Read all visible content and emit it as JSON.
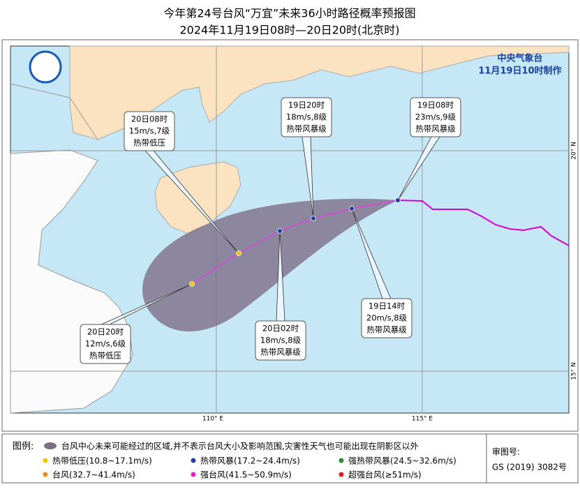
{
  "title": "今年第24号台风“万宜”未来36小时路径概率预报图",
  "subtitle": "2024年11月19日08时—20日20时(北京时)",
  "agency": "中央气象台",
  "issued": "11月19日10时制作",
  "callouts": [
    {
      "lines": [
        "19日08时",
        "23m/s,9级",
        "热带风暴级"
      ]
    },
    {
      "lines": [
        "19日14时",
        "20m/s,8级",
        "热带风暴级"
      ]
    },
    {
      "lines": [
        "19日20时",
        "18m/s,8级",
        "热带风暴级"
      ]
    },
    {
      "lines": [
        "20日02时",
        "18m/s,8级",
        "热带风暴级"
      ]
    },
    {
      "lines": [
        "20日08时",
        "15m/s,7级",
        "热带低压"
      ]
    },
    {
      "lines": [
        "20日20时",
        "12m/s,6级",
        "热带低压"
      ]
    }
  ],
  "grid_labels": {
    "lon110": "110° E",
    "lon115": "115° E",
    "lat20": "20° N",
    "lat15": "15° N"
  },
  "legend": {
    "title": "图例:",
    "cone": "台风中心未来可能经过的区域,并不表示台风大小及影响范围,灾害性天气也可能出现在阴影区以外",
    "items": [
      {
        "label": "热带低压(10.8~17.1m/s)",
        "color": "#f2c200"
      },
      {
        "label": "热带风暴(17.2~24.4m/s)",
        "color": "#2a3fa0"
      },
      {
        "label": "强热带风暴(24.5~32.6m/s)",
        "color": "#2e8b3a"
      },
      {
        "label": "台风(32.7~41.4m/s)",
        "color": "#f08a1c"
      },
      {
        "label": "强台风(41.5~50.9m/s)",
        "color": "#e020d0"
      },
      {
        "label": "超强台风(≥51m/s)",
        "color": "#e02020"
      }
    ]
  },
  "approval": {
    "label": "审图号:",
    "number": "GS (2019) 3082号"
  }
}
